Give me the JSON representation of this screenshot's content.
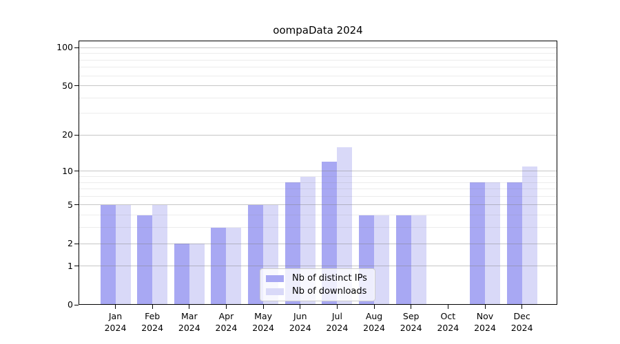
{
  "chart_data": {
    "type": "bar",
    "title": "oompaData 2024",
    "categories": [
      "Jan",
      "Feb",
      "Mar",
      "Apr",
      "May",
      "Jun",
      "Jul",
      "Aug",
      "Sep",
      "Oct",
      "Nov",
      "Dec"
    ],
    "x_year_label": "2024",
    "series": [
      {
        "name": "Nb of distinct IPs",
        "color": "#a8a8f3",
        "values": [
          5,
          4,
          2,
          3,
          5,
          8,
          12,
          4,
          4,
          0,
          8,
          8
        ]
      },
      {
        "name": "Nb of downloads",
        "color": "#d9d9f8",
        "values": [
          5,
          5,
          2,
          3,
          5,
          9,
          16,
          4,
          4,
          0,
          8,
          11
        ]
      }
    ],
    "yscale": "log1p",
    "ylim": [
      0,
      114
    ],
    "y_major_ticks": [
      100,
      50,
      20,
      10,
      5,
      2,
      1,
      0
    ],
    "y_minor_gridlines": [
      3,
      4,
      6,
      7,
      8,
      9,
      30,
      40,
      60,
      70,
      80,
      90
    ],
    "grid": "both",
    "legend_position": "lower center",
    "colors": {
      "axis": "#000000",
      "grid_major": "rgba(128,128,128,0.45)",
      "grid_minor": "rgba(128,128,128,0.15)"
    }
  }
}
